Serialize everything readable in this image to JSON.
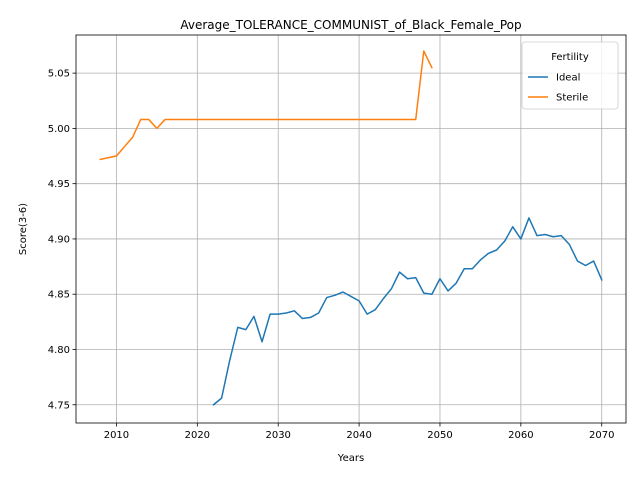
{
  "chart_data": {
    "type": "line",
    "title": "Average_TOLERANCE_COMMUNIST_of_Black_Female_Pop",
    "xlabel": "Years",
    "ylabel": "Score(3-6)",
    "xlim": [
      2005,
      2073
    ],
    "ylim": [
      4.7335,
      5.0845
    ],
    "x_ticks": [
      2010,
      2020,
      2030,
      2040,
      2050,
      2060,
      2070
    ],
    "y_ticks": [
      4.75,
      4.8,
      4.85,
      4.9,
      4.95,
      5.0,
      5.05
    ],
    "x_tick_labels": [
      "2010",
      "2020",
      "2030",
      "2040",
      "2050",
      "2060",
      "2070"
    ],
    "y_tick_labels": [
      "4.75",
      "4.80",
      "4.85",
      "4.90",
      "4.95",
      "5.00",
      "5.05"
    ],
    "grid": true,
    "legend": {
      "title": "Fertility",
      "position": "top-right"
    },
    "series": [
      {
        "name": "Ideal",
        "color": "#1f77b4",
        "x": [
          2022,
          2023,
          2024,
          2025,
          2026,
          2027,
          2028,
          2029,
          2030,
          2031,
          2032,
          2033,
          2034,
          2035,
          2036,
          2037,
          2038,
          2039,
          2040,
          2041,
          2042,
          2043,
          2044,
          2045,
          2046,
          2047,
          2048,
          2049,
          2050,
          2051,
          2052,
          2053,
          2054,
          2055,
          2056,
          2057,
          2058,
          2059,
          2060,
          2061,
          2062,
          2063,
          2064,
          2065,
          2066,
          2067,
          2068,
          2069,
          2070
        ],
        "y": [
          4.75,
          4.756,
          4.79,
          4.82,
          4.818,
          4.83,
          4.807,
          4.832,
          4.832,
          4.833,
          4.835,
          4.828,
          4.829,
          4.833,
          4.847,
          4.849,
          4.852,
          4.848,
          4.844,
          4.832,
          4.836,
          4.846,
          4.855,
          4.87,
          4.864,
          4.865,
          4.851,
          4.85,
          4.864,
          4.853,
          4.86,
          4.873,
          4.873,
          4.881,
          4.887,
          4.89,
          4.898,
          4.911,
          4.9,
          4.919,
          4.903,
          4.904,
          4.902,
          4.903,
          4.895,
          4.88,
          4.876,
          4.88,
          4.863
        ]
      },
      {
        "name": "Sterile",
        "color": "#ff7f0e",
        "x": [
          2008,
          2010,
          2012,
          2013,
          2014,
          2015,
          2016,
          2017,
          2018,
          2019,
          2020,
          2021,
          2022,
          2023,
          2024,
          2025,
          2026,
          2027,
          2028,
          2029,
          2030,
          2031,
          2032,
          2033,
          2034,
          2035,
          2036,
          2037,
          2038,
          2039,
          2040,
          2041,
          2042,
          2043,
          2044,
          2045,
          2046,
          2047,
          2048,
          2049
        ],
        "y": [
          4.972,
          4.975,
          4.992,
          5.008,
          5.008,
          5.0,
          5.008,
          5.008,
          5.008,
          5.008,
          5.008,
          5.008,
          5.008,
          5.008,
          5.008,
          5.008,
          5.008,
          5.008,
          5.008,
          5.008,
          5.008,
          5.008,
          5.008,
          5.008,
          5.008,
          5.008,
          5.008,
          5.008,
          5.008,
          5.008,
          5.008,
          5.008,
          5.008,
          5.008,
          5.008,
          5.008,
          5.008,
          5.008,
          5.07,
          5.055
        ]
      }
    ]
  }
}
